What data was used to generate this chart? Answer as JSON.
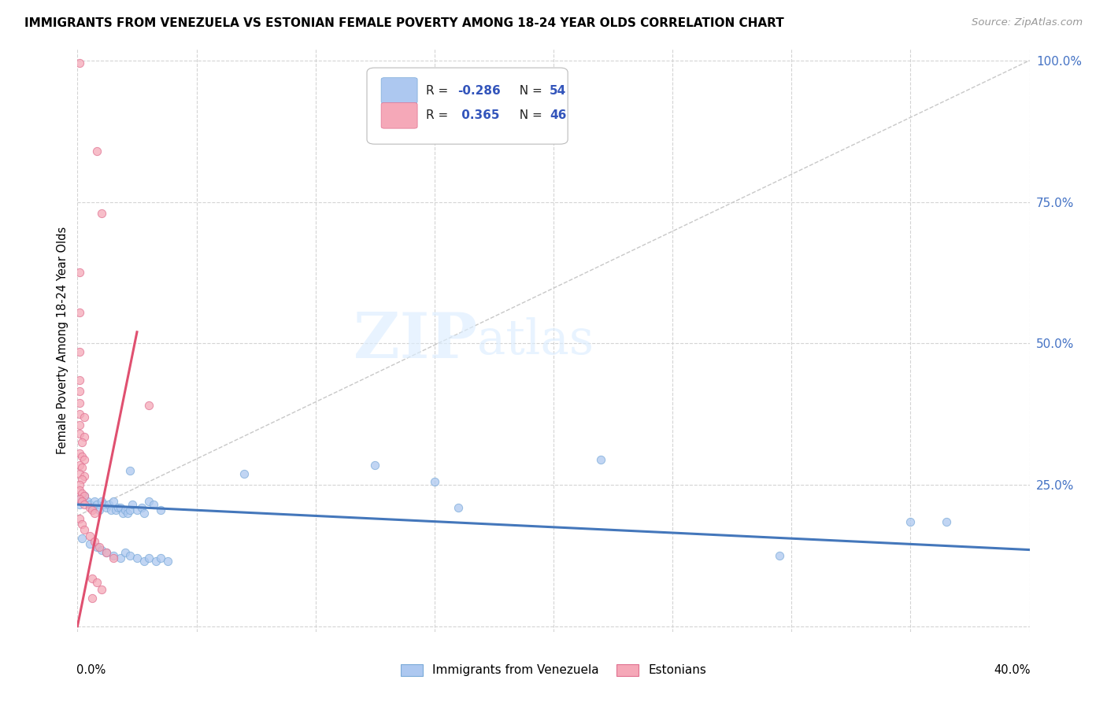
{
  "title": "IMMIGRANTS FROM VENEZUELA VS ESTONIAN FEMALE POVERTY AMONG 18-24 YEAR OLDS CORRELATION CHART",
  "source": "Source: ZipAtlas.com",
  "ylabel": "Female Poverty Among 18-24 Year Olds",
  "watermark_zip": "ZIP",
  "watermark_atlas": "atlas",
  "background_color": "#ffffff",
  "grid_color": "#d0d0d0",
  "xlim": [
    0.0,
    0.4
  ],
  "ylim": [
    -0.01,
    1.02
  ],
  "ytick_values": [
    0.0,
    0.25,
    0.5,
    0.75,
    1.0
  ],
  "ytick_labels": [
    "",
    "25.0%",
    "50.0%",
    "75.0%",
    "100.0%"
  ],
  "xtick_values": [
    0.0,
    0.05,
    0.1,
    0.15,
    0.2,
    0.25,
    0.3,
    0.35,
    0.4
  ],
  "blue_color": "#adc8f0",
  "blue_edge": "#7aaad8",
  "pink_color": "#f5a8b8",
  "pink_edge": "#e07090",
  "blue_line_color": "#4477bb",
  "pink_line_color": "#e05070",
  "diag_line_color": "#c8c8c8",
  "dot_size": 55,
  "dot_alpha": 0.75,
  "blue_line_x": [
    0.0,
    0.4
  ],
  "blue_line_y": [
    0.215,
    0.135
  ],
  "pink_line_x": [
    0.0,
    0.025
  ],
  "pink_line_y": [
    0.0,
    0.52
  ],
  "diag_line_x": [
    0.0,
    0.4
  ],
  "diag_line_y": [
    0.195,
    1.0
  ],
  "blue_scatter": [
    [
      0.001,
      0.225
    ],
    [
      0.001,
      0.215
    ],
    [
      0.002,
      0.22
    ],
    [
      0.003,
      0.23
    ],
    [
      0.004,
      0.22
    ],
    [
      0.005,
      0.215
    ],
    [
      0.006,
      0.21
    ],
    [
      0.007,
      0.22
    ],
    [
      0.008,
      0.215
    ],
    [
      0.009,
      0.205
    ],
    [
      0.01,
      0.22
    ],
    [
      0.011,
      0.215
    ],
    [
      0.012,
      0.21
    ],
    [
      0.013,
      0.215
    ],
    [
      0.014,
      0.205
    ],
    [
      0.015,
      0.22
    ],
    [
      0.016,
      0.205
    ],
    [
      0.017,
      0.21
    ],
    [
      0.018,
      0.21
    ],
    [
      0.019,
      0.2
    ],
    [
      0.02,
      0.205
    ],
    [
      0.021,
      0.2
    ],
    [
      0.022,
      0.205
    ],
    [
      0.023,
      0.215
    ],
    [
      0.025,
      0.205
    ],
    [
      0.027,
      0.21
    ],
    [
      0.028,
      0.2
    ],
    [
      0.03,
      0.22
    ],
    [
      0.032,
      0.215
    ],
    [
      0.035,
      0.205
    ],
    [
      0.002,
      0.155
    ],
    [
      0.005,
      0.145
    ],
    [
      0.008,
      0.14
    ],
    [
      0.01,
      0.135
    ],
    [
      0.012,
      0.13
    ],
    [
      0.015,
      0.125
    ],
    [
      0.018,
      0.12
    ],
    [
      0.02,
      0.13
    ],
    [
      0.022,
      0.125
    ],
    [
      0.025,
      0.12
    ],
    [
      0.028,
      0.115
    ],
    [
      0.03,
      0.12
    ],
    [
      0.033,
      0.115
    ],
    [
      0.035,
      0.12
    ],
    [
      0.038,
      0.115
    ],
    [
      0.022,
      0.275
    ],
    [
      0.07,
      0.27
    ],
    [
      0.125,
      0.285
    ],
    [
      0.15,
      0.255
    ],
    [
      0.16,
      0.21
    ],
    [
      0.22,
      0.295
    ],
    [
      0.35,
      0.185
    ],
    [
      0.365,
      0.185
    ],
    [
      0.295,
      0.125
    ]
  ],
  "pink_scatter": [
    [
      0.001,
      0.995
    ],
    [
      0.008,
      0.84
    ],
    [
      0.01,
      0.73
    ],
    [
      0.001,
      0.625
    ],
    [
      0.001,
      0.555
    ],
    [
      0.001,
      0.485
    ],
    [
      0.001,
      0.435
    ],
    [
      0.001,
      0.415
    ],
    [
      0.001,
      0.395
    ],
    [
      0.001,
      0.375
    ],
    [
      0.003,
      0.37
    ],
    [
      0.001,
      0.355
    ],
    [
      0.001,
      0.34
    ],
    [
      0.003,
      0.335
    ],
    [
      0.002,
      0.325
    ],
    [
      0.001,
      0.305
    ],
    [
      0.002,
      0.3
    ],
    [
      0.003,
      0.295
    ],
    [
      0.001,
      0.285
    ],
    [
      0.002,
      0.28
    ],
    [
      0.001,
      0.27
    ],
    [
      0.003,
      0.265
    ],
    [
      0.002,
      0.26
    ],
    [
      0.001,
      0.25
    ],
    [
      0.001,
      0.24
    ],
    [
      0.002,
      0.235
    ],
    [
      0.003,
      0.23
    ],
    [
      0.001,
      0.225
    ],
    [
      0.002,
      0.22
    ],
    [
      0.003,
      0.215
    ],
    [
      0.005,
      0.21
    ],
    [
      0.006,
      0.205
    ],
    [
      0.007,
      0.2
    ],
    [
      0.001,
      0.19
    ],
    [
      0.002,
      0.18
    ],
    [
      0.003,
      0.17
    ],
    [
      0.005,
      0.16
    ],
    [
      0.007,
      0.15
    ],
    [
      0.009,
      0.14
    ],
    [
      0.012,
      0.13
    ],
    [
      0.015,
      0.12
    ],
    [
      0.03,
      0.39
    ],
    [
      0.006,
      0.085
    ],
    [
      0.008,
      0.078
    ],
    [
      0.01,
      0.065
    ],
    [
      0.006,
      0.05
    ]
  ]
}
